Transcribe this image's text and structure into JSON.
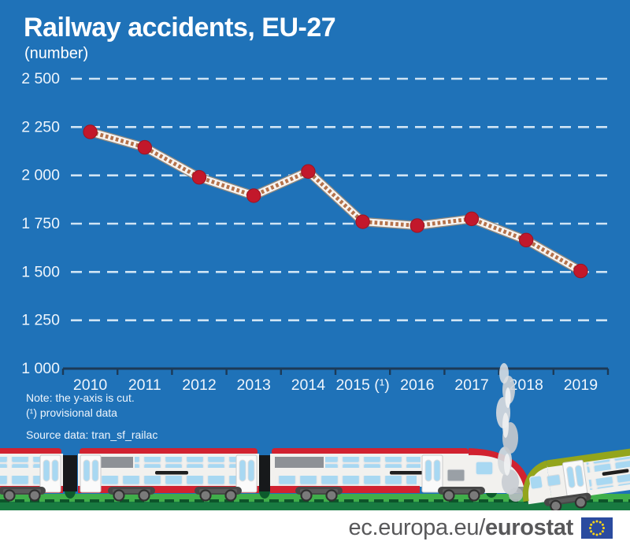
{
  "header": {
    "title": "Railway accidents, EU-27",
    "subtitle": "(number)"
  },
  "chart_data": {
    "type": "line",
    "title": "Railway accidents, EU-27",
    "unit": "number",
    "categories": [
      "2010",
      "2011",
      "2012",
      "2013",
      "2014",
      "2015 (¹)",
      "2016",
      "2017",
      "2018",
      "2019"
    ],
    "series": [
      {
        "name": "Railway accidents, EU-27",
        "values": [
          2225,
          2145,
          1990,
          1895,
          2020,
          1760,
          1740,
          1775,
          1665,
          1505
        ]
      }
    ],
    "ylim": [
      1000,
      2500
    ],
    "yticks": [
      {
        "value": 2500,
        "label": "2 500"
      },
      {
        "value": 2250,
        "label": "2 250"
      },
      {
        "value": 2000,
        "label": "2 000"
      },
      {
        "value": 1750,
        "label": "1 750"
      },
      {
        "value": 1500,
        "label": "1 500"
      },
      {
        "value": 1250,
        "label": "1 250"
      },
      {
        "value": 1000,
        "label": "1 000"
      }
    ],
    "grid": "horizontal-dashed",
    "legend_position": "none",
    "y_axis_cut": true,
    "line_style": "railway-track",
    "marker_style": "red-dot"
  },
  "notes": {
    "line1": "Note: the y-axis is cut.",
    "line2": "(¹) provisional data",
    "source": "Source data: tran_sf_railac"
  },
  "footer": {
    "url_regular": "ec.europa.eu/",
    "url_bold": "eurostat",
    "flag_icon": "eu-flag-icon"
  },
  "colors": {
    "background": "#1f72b8",
    "title_text": "#ffffff",
    "grid_line": "#cfe4f4",
    "axis_line": "#1c3a57",
    "tick_label": "#eef5fc",
    "marker_red": "#c2182b",
    "marker_rim": "#9c1322",
    "track_rail": "#f7f4f1",
    "track_tie": "#b4714a",
    "track_edge": "#938a7f",
    "train_red": "#d12230",
    "train_green_roof": "#93a51c",
    "window_blue": "#a8d8f2",
    "ground_green_light": "#3fae4a",
    "ground_green_dark": "#187a41",
    "smoke_gray": "#c9ced3",
    "footer_text": "#58585a",
    "eu_flag_blue": "#2a4b9f",
    "eu_flag_stars": "#ffd617"
  }
}
